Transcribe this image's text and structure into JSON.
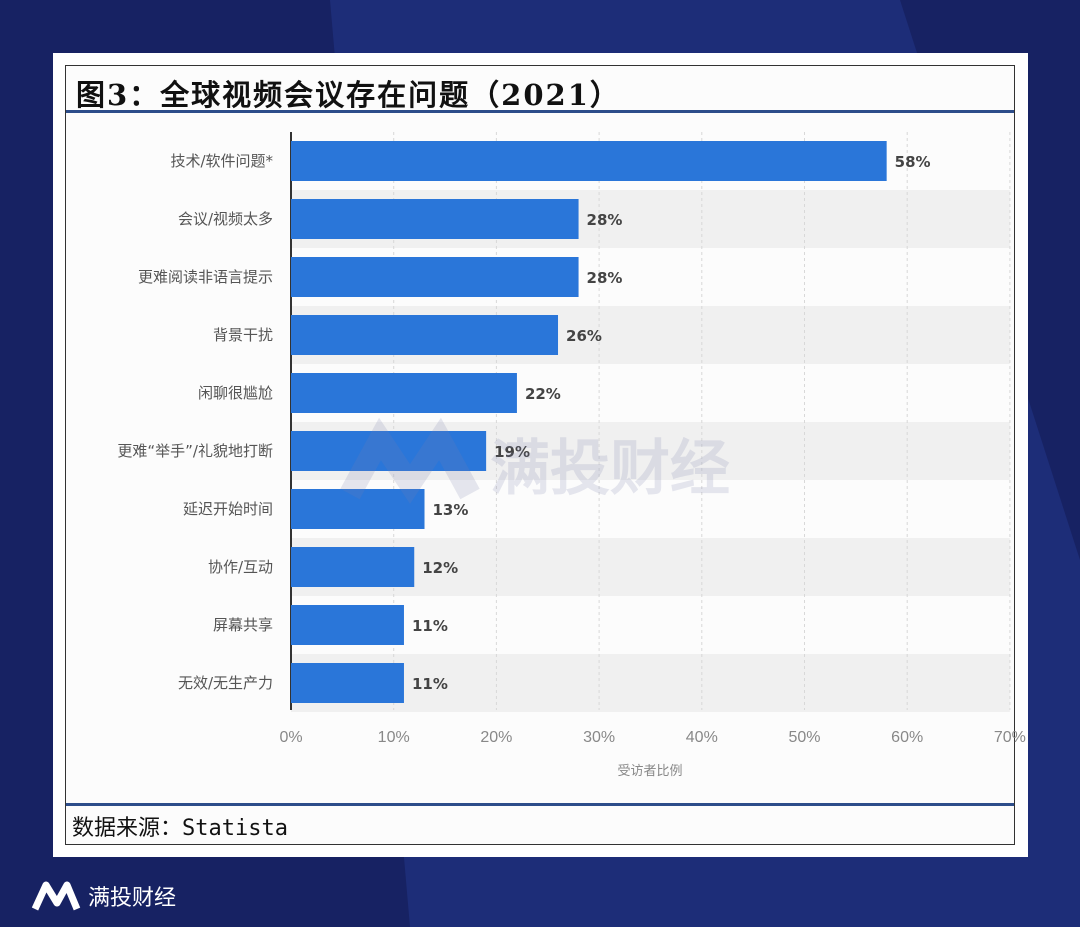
{
  "title": "图3：全球视频会议存在问题（2021）",
  "source": "数据来源：Statista",
  "brand": "满投财经",
  "watermark": "满投财经",
  "colors": {
    "bar": "#2a76d9",
    "background": "#172263"
  },
  "chart_data": {
    "type": "bar",
    "orientation": "horizontal",
    "categories": [
      "技术/软件问题*",
      "会议/视频太多",
      "更难阅读非语言提示",
      "背景干扰",
      "闲聊很尴尬",
      "更难“举手”/礼貌地打断",
      "延迟开始时间",
      "协作/互动",
      "屏幕共享",
      "无效/无生产力"
    ],
    "values": [
      58,
      28,
      28,
      26,
      22,
      19,
      13,
      12,
      11,
      11
    ],
    "data_labels": [
      "58%",
      "28%",
      "28%",
      "26%",
      "22%",
      "19%",
      "13%",
      "12%",
      "11%",
      "11%"
    ],
    "xticks": [
      "0%",
      "10%",
      "20%",
      "30%",
      "40%",
      "50%",
      "60%",
      "70%"
    ],
    "xlim": [
      0,
      70
    ],
    "xlabel": "受访者比例",
    "grid": true
  }
}
